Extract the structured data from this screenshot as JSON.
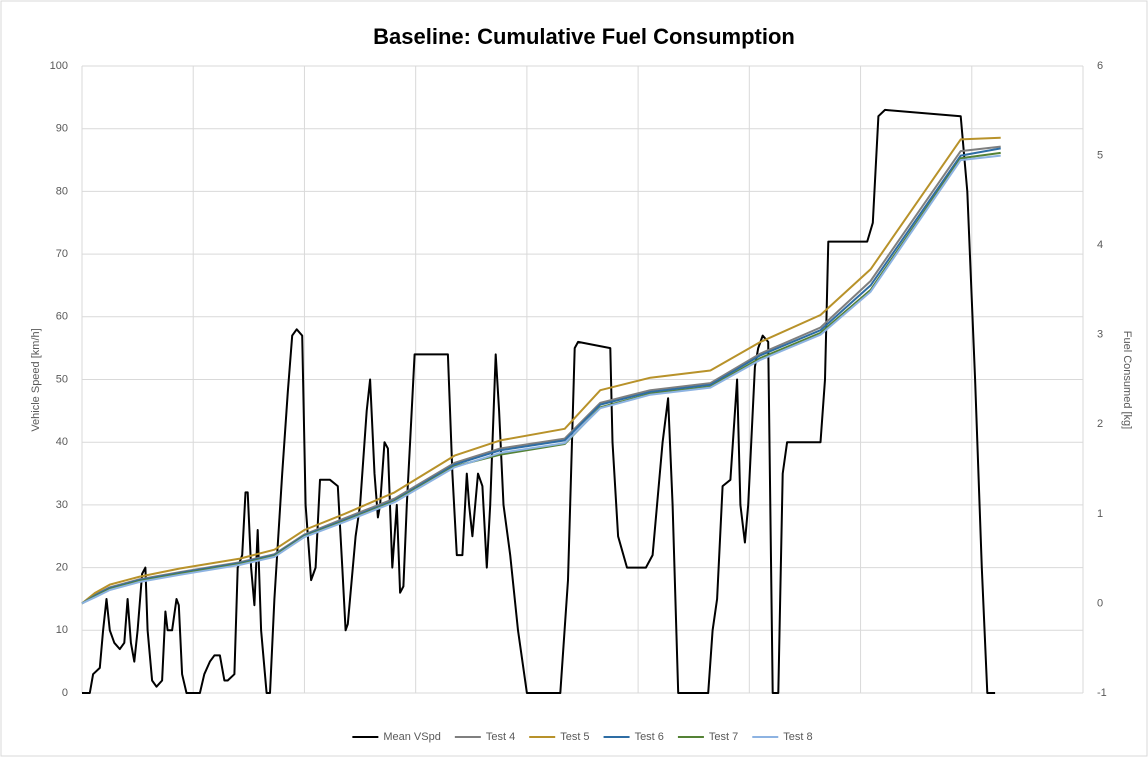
{
  "chart_data": {
    "type": "line",
    "title": "Baseline: Cumulative Fuel Consumption",
    "y_label": "Vehicle Speed [km/h]",
    "y2_label": "Fuel Consumed [kg]",
    "xlim": [
      0,
      900
    ],
    "xticks": [
      0,
      100,
      200,
      300,
      400,
      500,
      600,
      700,
      800,
      900
    ],
    "ylim": [
      0,
      100
    ],
    "yticks": [
      0,
      10,
      20,
      30,
      40,
      50,
      60,
      70,
      80,
      90,
      100
    ],
    "y2lim": [
      -1,
      6
    ],
    "y2ticks": [
      -1,
      0,
      1,
      2,
      3,
      4,
      5,
      6
    ],
    "grid": true,
    "legend": "bottom",
    "series": [
      {
        "name": "Mean VSpd",
        "color": "#000000",
        "x": [
          0,
          7,
          10,
          16,
          19,
          22,
          25,
          29,
          34,
          38,
          41,
          44,
          47,
          50,
          54,
          57,
          59,
          63,
          67,
          72,
          75,
          77,
          81,
          85,
          87,
          90,
          94,
          106,
          110,
          115,
          119,
          124,
          128,
          131,
          137,
          140,
          144,
          147,
          149,
          152,
          155,
          158,
          161,
          166,
          169,
          173,
          180,
          185,
          189,
          193,
          198,
          201,
          206,
          210,
          214,
          223,
          230,
          234,
          237,
          239,
          246,
          250,
          256,
          259,
          263,
          266,
          268,
          272,
          275,
          279,
          283,
          286,
          289,
          292,
          295,
          299,
          304,
          329,
          333,
          337,
          342,
          346,
          348,
          351,
          356,
          360,
          364,
          367,
          372,
          375,
          379,
          385,
          392,
          400,
          430,
          437,
          443,
          446,
          475,
          477,
          482,
          490,
          507,
          513,
          522,
          527,
          531,
          536,
          563,
          567,
          571,
          576,
          583,
          589,
          592,
          596,
          599,
          605,
          608,
          612,
          617,
          621,
          626,
          630,
          634,
          664,
          668,
          671,
          679,
          706,
          711,
          716,
          722,
          790,
          796,
          803,
          809,
          814,
          821
        ],
        "values": [
          0,
          0,
          3,
          4,
          10,
          15,
          10,
          8,
          7,
          8,
          15,
          8,
          5,
          10,
          19,
          20,
          10,
          2,
          1,
          2,
          13,
          10,
          10,
          15,
          14,
          3,
          0,
          0,
          3,
          5,
          6,
          6,
          2,
          2,
          3,
          20,
          22,
          32,
          32,
          20,
          14,
          26,
          10,
          0,
          0,
          15,
          35,
          48,
          57,
          58,
          57,
          30,
          18,
          20,
          34,
          34,
          33,
          20,
          10,
          11,
          25,
          30,
          45,
          50,
          35,
          28,
          30,
          40,
          39,
          20,
          30,
          16,
          17,
          30,
          40,
          54,
          54,
          54,
          35,
          22,
          22,
          35,
          30,
          25,
          35,
          33,
          20,
          30,
          54,
          45,
          30,
          22,
          10,
          0,
          0,
          18,
          55,
          56,
          55,
          40,
          25,
          20,
          20,
          22,
          40,
          47,
          30,
          0,
          0,
          10,
          15,
          33,
          34,
          50,
          30,
          24,
          30,
          52,
          55,
          57,
          56,
          0,
          0,
          35,
          40,
          40,
          50,
          72,
          72,
          72,
          75,
          92,
          93,
          92,
          80,
          50,
          20,
          0,
          0
        ]
      },
      {
        "name": "Test 4",
        "color": "#7f7f7f",
        "axis": "y2",
        "x": [
          0,
          12,
          25,
          52,
          88,
          142,
          173,
          200,
          236,
          281,
          335,
          376,
          434,
          466,
          511,
          565,
          610,
          664,
          709,
          790,
          826
        ],
        "values": [
          0,
          0.1,
          0.18,
          0.27,
          0.35,
          0.46,
          0.55,
          0.77,
          0.95,
          1.17,
          1.57,
          1.73,
          1.84,
          2.24,
          2.38,
          2.46,
          2.79,
          3.08,
          3.6,
          5.05,
          5.1
        ]
      },
      {
        "name": "Test 5",
        "color": "#b8922a",
        "axis": "y2",
        "x": [
          0,
          12,
          25,
          52,
          88,
          142,
          173,
          200,
          236,
          281,
          335,
          376,
          434,
          466,
          511,
          565,
          610,
          664,
          709,
          790,
          826
        ],
        "values": [
          0,
          0.12,
          0.21,
          0.3,
          0.39,
          0.5,
          0.6,
          0.82,
          1.0,
          1.24,
          1.65,
          1.82,
          1.95,
          2.38,
          2.52,
          2.6,
          2.92,
          3.22,
          3.73,
          5.18,
          5.2
        ]
      },
      {
        "name": "Test 6",
        "color": "#2e6da4",
        "axis": "y2",
        "x": [
          0,
          12,
          25,
          52,
          88,
          142,
          173,
          200,
          236,
          281,
          335,
          376,
          434,
          466,
          511,
          565,
          610,
          664,
          709,
          790,
          826
        ],
        "values": [
          0,
          0.09,
          0.17,
          0.26,
          0.34,
          0.45,
          0.54,
          0.76,
          0.93,
          1.15,
          1.55,
          1.71,
          1.82,
          2.22,
          2.36,
          2.44,
          2.77,
          3.05,
          3.55,
          5.0,
          5.08
        ]
      },
      {
        "name": "Test 7",
        "color": "#548235",
        "axis": "y2",
        "x": [
          0,
          12,
          25,
          52,
          88,
          142,
          173,
          200,
          236,
          281,
          335,
          376,
          434,
          466,
          511,
          565,
          610,
          664,
          709,
          790,
          826
        ],
        "values": [
          0,
          0.08,
          0.16,
          0.25,
          0.33,
          0.44,
          0.53,
          0.75,
          0.92,
          1.14,
          1.53,
          1.66,
          1.78,
          2.19,
          2.34,
          2.42,
          2.74,
          3.02,
          3.5,
          4.97,
          5.03
        ]
      },
      {
        "name": "Test 8",
        "color": "#8db3e2",
        "axis": "y2",
        "x": [
          0,
          12,
          25,
          52,
          88,
          142,
          173,
          200,
          236,
          281,
          335,
          376,
          434,
          466,
          511,
          565,
          610,
          664,
          709,
          790,
          826
        ],
        "values": [
          0,
          0.07,
          0.15,
          0.24,
          0.32,
          0.43,
          0.52,
          0.74,
          0.91,
          1.13,
          1.52,
          1.68,
          1.79,
          2.18,
          2.33,
          2.41,
          2.72,
          3.0,
          3.48,
          4.95,
          5.0
        ]
      }
    ]
  }
}
